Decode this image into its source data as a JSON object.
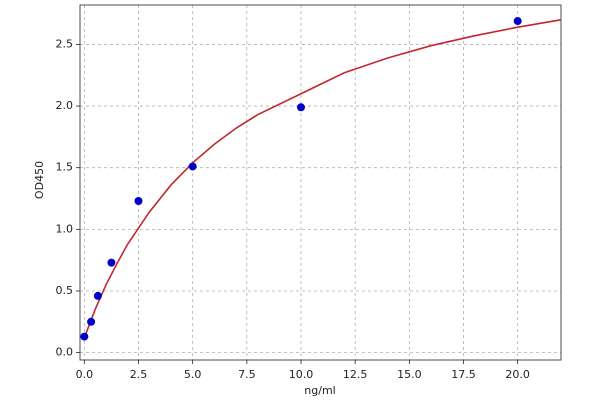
{
  "chart_data": {
    "type": "scatter",
    "xlabel": "ng/ml",
    "ylabel": "OD450",
    "xlim": [
      -0.2,
      22
    ],
    "ylim": [
      -0.06,
      2.82
    ],
    "xticks": [
      {
        "value": 0,
        "label": "0.0"
      },
      {
        "value": 2.5,
        "label": "2.5"
      },
      {
        "value": 5,
        "label": "5.0"
      },
      {
        "value": 7.5,
        "label": "7.5"
      },
      {
        "value": 10,
        "label": "10.0"
      },
      {
        "value": 12.5,
        "label": "12.5"
      },
      {
        "value": 15,
        "label": "15.0"
      },
      {
        "value": 17.5,
        "label": "17.5"
      },
      {
        "value": 20,
        "label": "20.0"
      }
    ],
    "yticks": [
      {
        "value": 0,
        "label": "0.0"
      },
      {
        "value": 0.5,
        "label": "0.5"
      },
      {
        "value": 1,
        "label": "1.0"
      },
      {
        "value": 1.5,
        "label": "1.5"
      },
      {
        "value": 2,
        "label": "2.0"
      },
      {
        "value": 2.5,
        "label": "2.5"
      }
    ],
    "grid": true,
    "points": {
      "color": "#0000cc",
      "x": [
        0,
        0.312,
        0.625,
        1.25,
        2.5,
        5,
        10,
        20
      ],
      "values": [
        0.13,
        0.25,
        0.46,
        0.73,
        1.23,
        1.51,
        1.99,
        2.69
      ]
    },
    "curve": {
      "color": "#c0282d",
      "x": [
        0,
        0.5,
        1,
        1.5,
        2,
        3,
        4,
        5,
        6,
        7,
        8,
        10,
        12,
        14,
        16,
        18,
        20,
        22
      ],
      "values": [
        0.12,
        0.35,
        0.55,
        0.72,
        0.88,
        1.14,
        1.36,
        1.54,
        1.69,
        1.82,
        1.93,
        2.1,
        2.27,
        2.39,
        2.49,
        2.57,
        2.64,
        2.7
      ]
    }
  }
}
